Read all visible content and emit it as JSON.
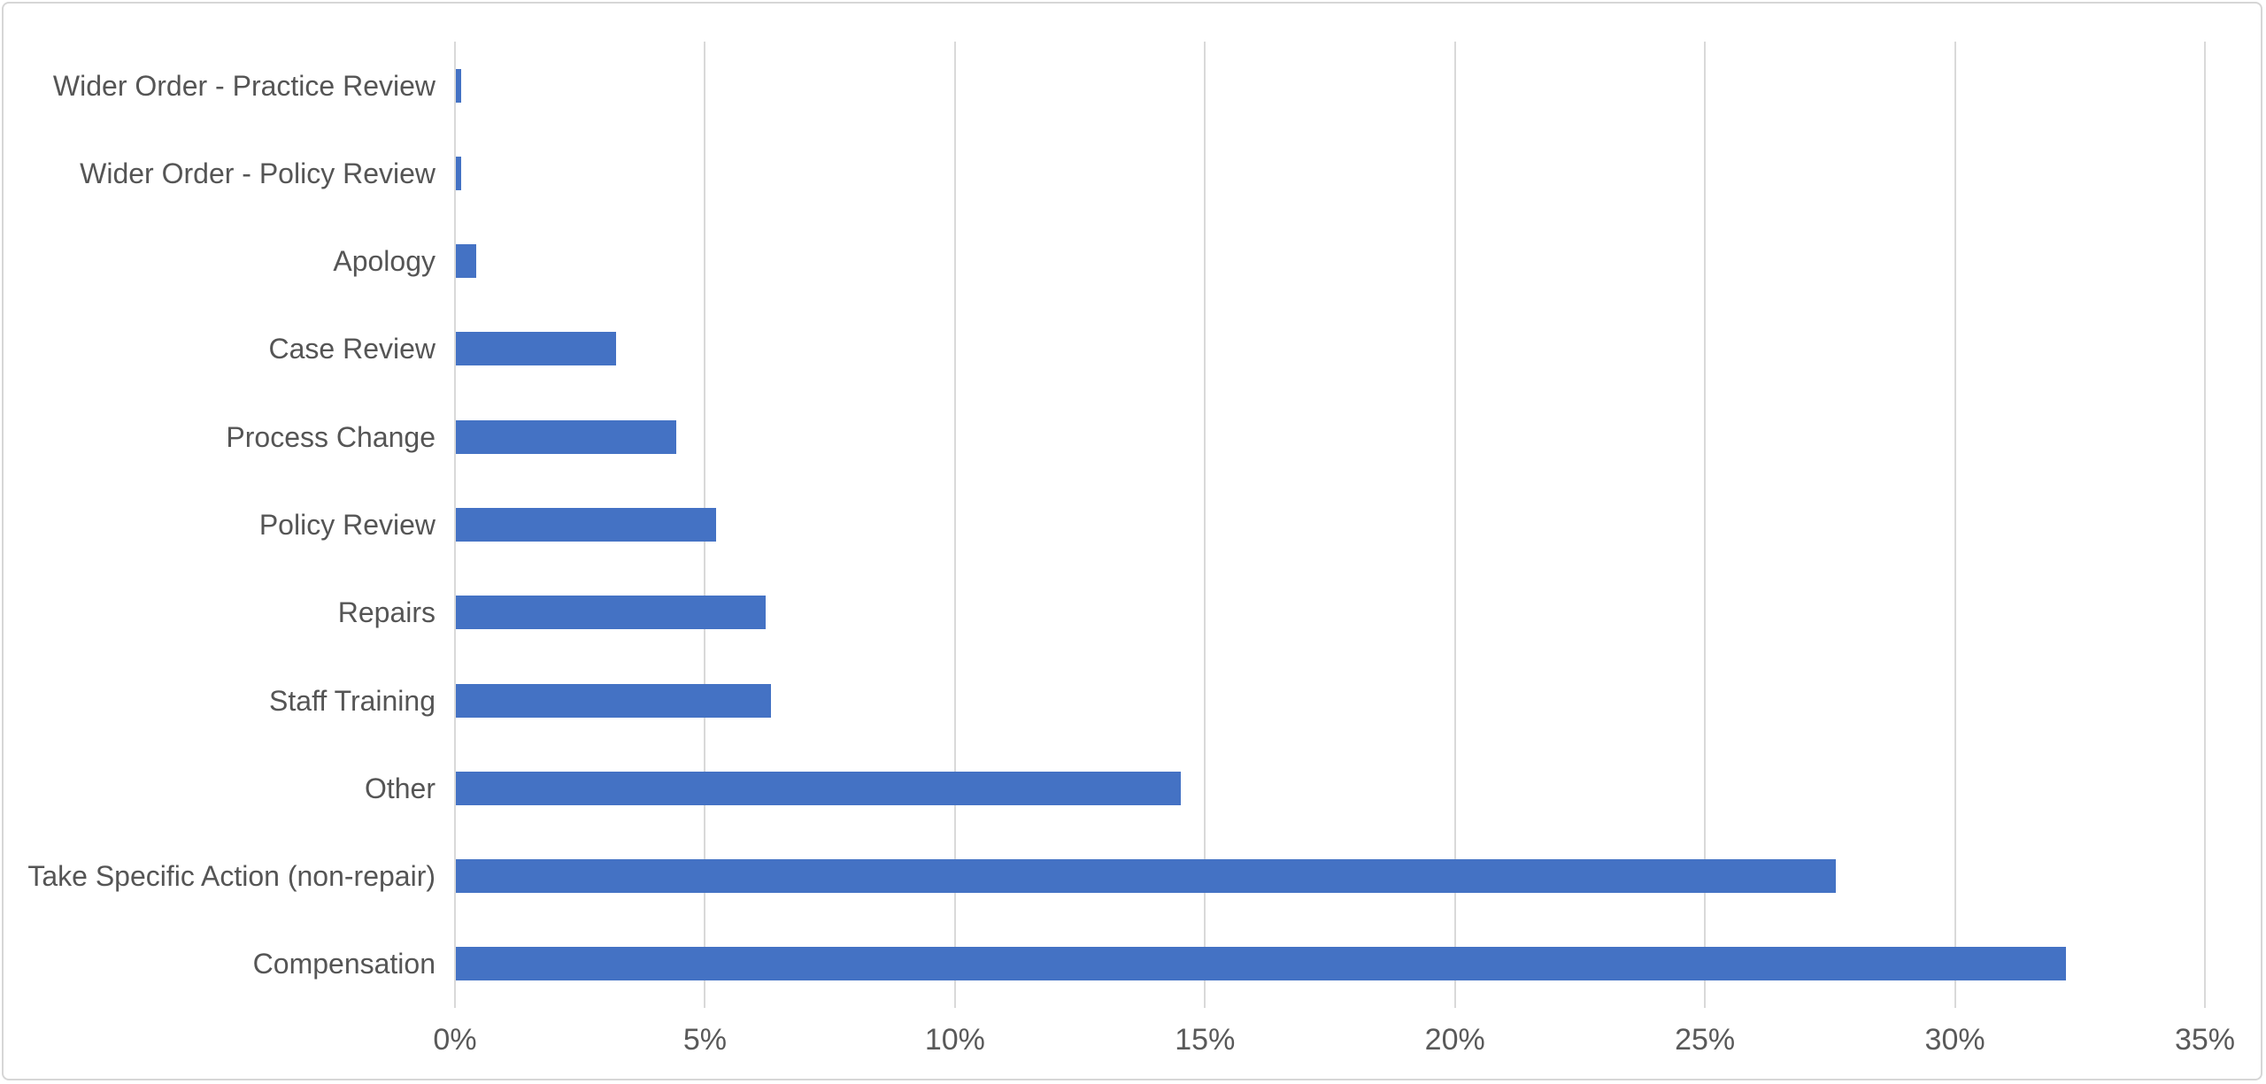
{
  "chart_data": {
    "type": "bar",
    "orientation": "horizontal",
    "title": "",
    "categories_top_to_bottom": [
      "Wider Order - Practice Review",
      "Wider Order - Policy Review",
      "Apology",
      "Case Review",
      "Process Change",
      "Policy Review",
      "Repairs",
      "Staff Training",
      "Other",
      "Take Specific Action (non-repair)",
      "Compensation"
    ],
    "values_percent": [
      0.1,
      0.1,
      0.4,
      3.2,
      4.4,
      5.2,
      6.2,
      6.3,
      14.5,
      27.6,
      32.2
    ],
    "x_axis": {
      "min": 0,
      "max": 35,
      "step": 5,
      "unit": "%",
      "tick_labels": [
        "0%",
        "5%",
        "10%",
        "15%",
        "20%",
        "25%",
        "30%",
        "35%"
      ]
    },
    "grid": "vertical-only",
    "legend": "none",
    "colors": {
      "bar": "#4472c4",
      "gridline": "#d9d9d9",
      "category_text": "#555555",
      "tick_text": "#595959",
      "frame_border": "#d6d6d6",
      "background": "#ffffff"
    }
  }
}
